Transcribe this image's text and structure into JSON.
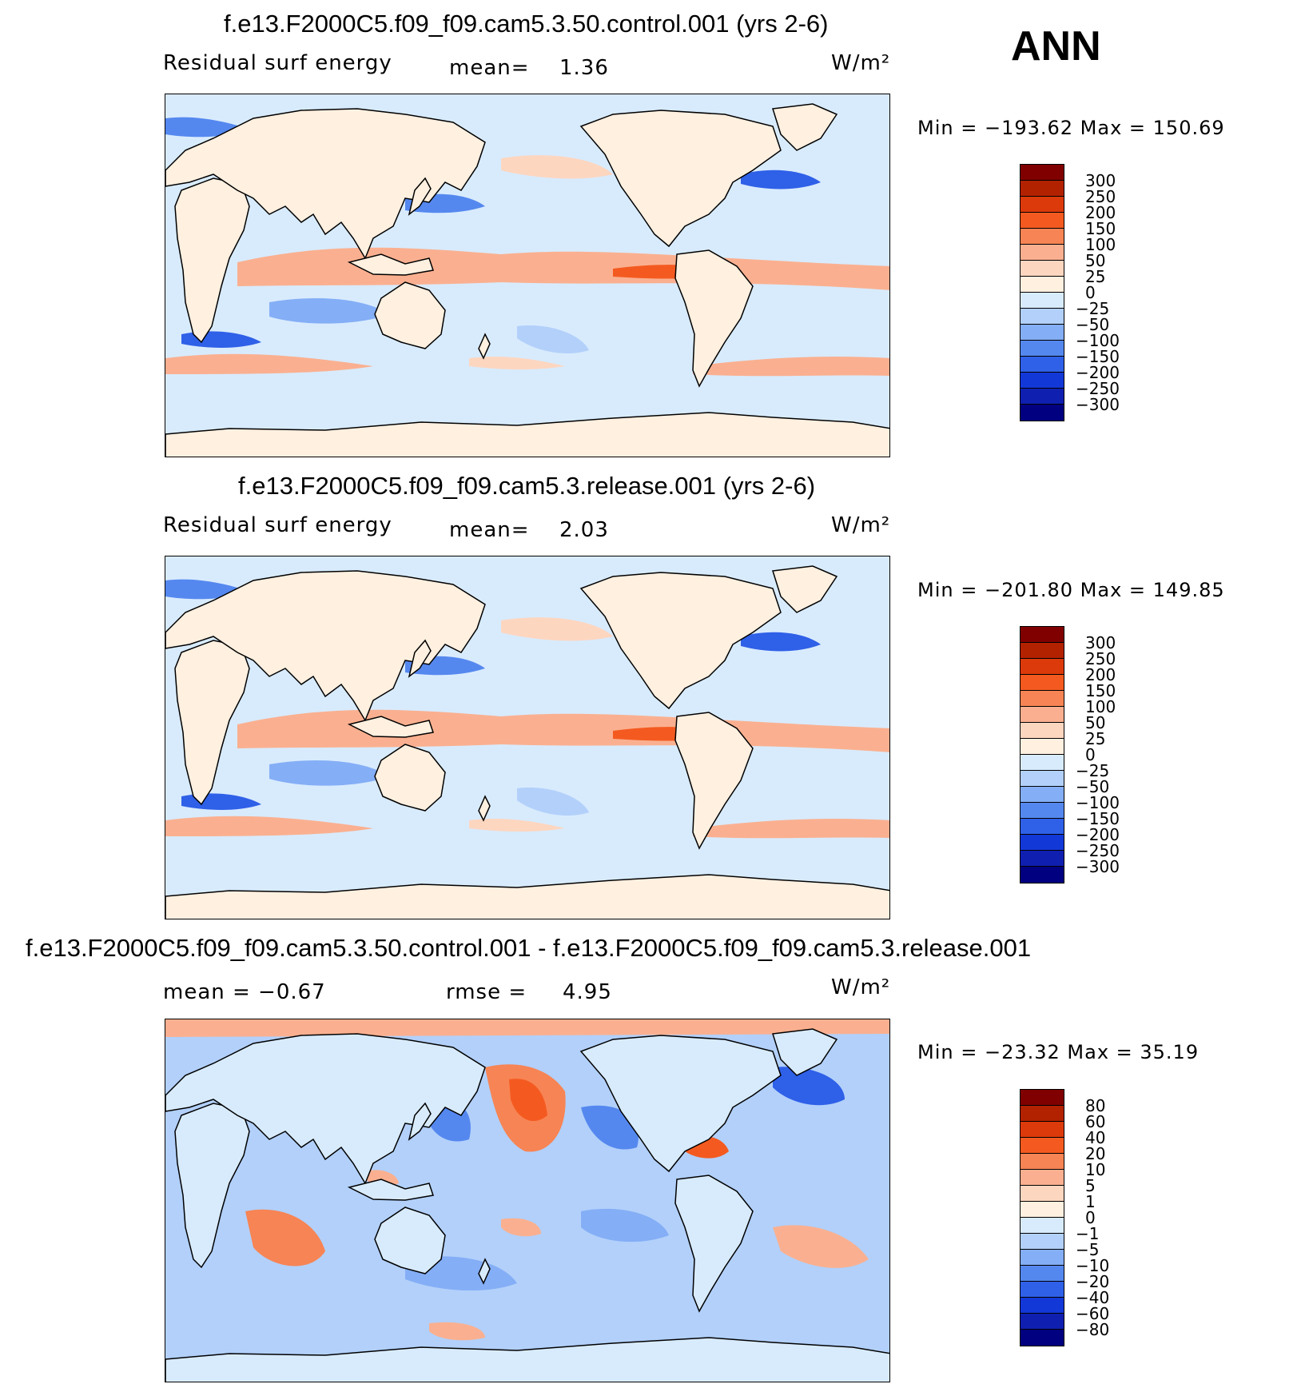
{
  "season": "ANN",
  "panels": [
    {
      "title": "f.e13.F2000C5.f09_f09.cam5.3.50.control.001 (yrs 2-6)",
      "left_label": "Residual surf energy",
      "stat_label": "mean=",
      "stat_value": "1.36",
      "units": "W/m²",
      "min_max": "Min = −193.62 Max = 150.69",
      "colorbar_labels": [
        "300",
        "250",
        "200",
        "150",
        "100",
        "50",
        "25",
        "0",
        "−25",
        "−50",
        "−100",
        "−150",
        "−200",
        "−250",
        "−300"
      ],
      "colorbar_colors": [
        "#800000",
        "#b22200",
        "#dc3a0a",
        "#f45a20",
        "#f78454",
        "#fab090",
        "#fdd6c0",
        "#fff0e0",
        "#d8ebfd",
        "#b2d0fa",
        "#84aef6",
        "#5588ef",
        "#2f60e8",
        "#1338d8",
        "#0f1fb0",
        "#000080"
      ],
      "map_style": "full"
    },
    {
      "title": "f.e13.F2000C5.f09_f09.cam5.3.release.001 (yrs 2-6)",
      "left_label": "Residual surf energy",
      "stat_label": "mean=",
      "stat_value": "2.03",
      "units": "W/m²",
      "min_max": "Min = −201.80 Max = 149.85",
      "colorbar_labels": [
        "300",
        "250",
        "200",
        "150",
        "100",
        "50",
        "25",
        "0",
        "−25",
        "−50",
        "−100",
        "−150",
        "−200",
        "−250",
        "−300"
      ],
      "colorbar_colors": [
        "#800000",
        "#b22200",
        "#dc3a0a",
        "#f45a20",
        "#f78454",
        "#fab090",
        "#fdd6c0",
        "#fff0e0",
        "#d8ebfd",
        "#b2d0fa",
        "#84aef6",
        "#5588ef",
        "#2f60e8",
        "#1338d8",
        "#0f1fb0",
        "#000080"
      ],
      "map_style": "full"
    },
    {
      "title": "f.e13.F2000C5.f09_f09.cam5.3.50.control.001 - f.e13.F2000C5.f09_f09.cam5.3.release.001",
      "left_label": "mean = −0.67",
      "stat_label": "rmse =",
      "stat_value": "4.95",
      "units": "W/m²",
      "min_max": "Min = −23.32 Max =  35.19",
      "colorbar_labels": [
        "80",
        "60",
        "40",
        "20",
        "10",
        "5",
        "1",
        "0",
        "−1",
        "−5",
        "−10",
        "−20",
        "−40",
        "−60",
        "−80"
      ],
      "colorbar_colors": [
        "#800000",
        "#b22200",
        "#dc3a0a",
        "#f45a20",
        "#f78454",
        "#fab090",
        "#fdd6c0",
        "#fff0e0",
        "#d8ebfd",
        "#b2d0fa",
        "#84aef6",
        "#5588ef",
        "#2f60e8",
        "#1338d8",
        "#0f1fb0",
        "#000080"
      ],
      "map_style": "diff"
    }
  ]
}
